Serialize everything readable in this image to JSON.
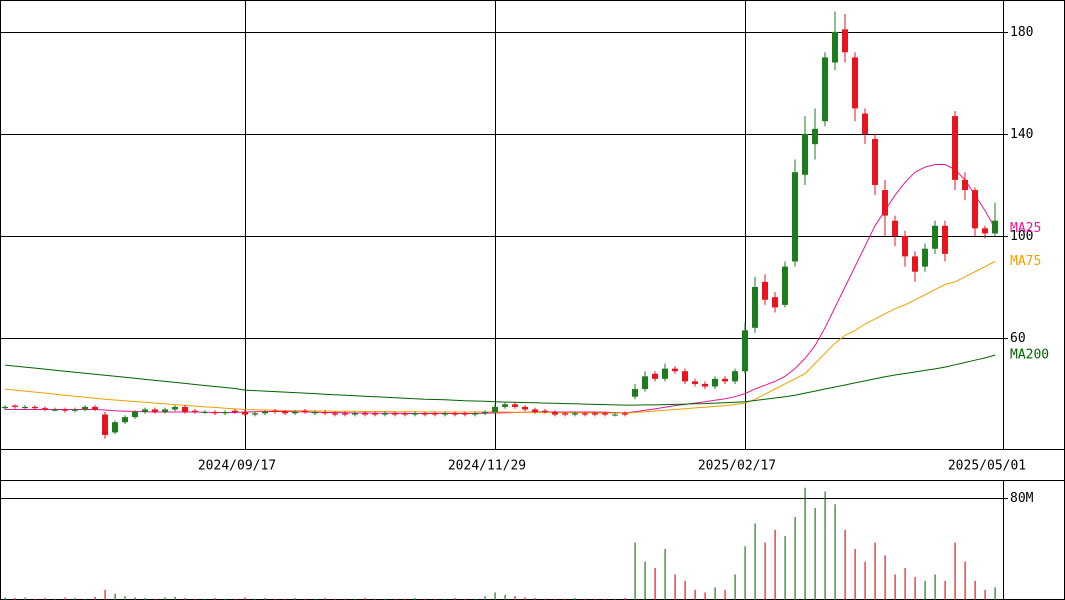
{
  "chart_data": [
    {
      "type": "candlestick",
      "up_color": "#1e7b1e",
      "down_color": "#e8141e",
      "categories": [
        null,
        null,
        null,
        null,
        null,
        null,
        null,
        null,
        null,
        null,
        null,
        null,
        null,
        null,
        null,
        null,
        null,
        null,
        null,
        null,
        null,
        null,
        null,
        null,
        "2024/09/17",
        null,
        null,
        null,
        null,
        null,
        null,
        null,
        null,
        null,
        null,
        null,
        null,
        null,
        null,
        null,
        null,
        null,
        null,
        null,
        null,
        null,
        null,
        null,
        null,
        "2024/11/29",
        null,
        null,
        null,
        null,
        null,
        null,
        null,
        null,
        null,
        null,
        null,
        null,
        null,
        null,
        null,
        null,
        null,
        null,
        null,
        null,
        null,
        null,
        null,
        null,
        "2025/02/17",
        null,
        null,
        null,
        null,
        null,
        null,
        null,
        null,
        null,
        null,
        null,
        null,
        null,
        null,
        null,
        null,
        null,
        null,
        null,
        null,
        null,
        null,
        null,
        null,
        "2025/05/01"
      ],
      "open": [
        32.5,
        33.5,
        32.5,
        33,
        32.5,
        31.5,
        32,
        31.5,
        32,
        33,
        30,
        23,
        27,
        29,
        31,
        32,
        31,
        32,
        33,
        31.5,
        31,
        31,
        30.5,
        31.5,
        31,
        30,
        30.5,
        31.5,
        31,
        30.5,
        31.5,
        30.5,
        31,
        30.5,
        30.5,
        30,
        30.5,
        30.5,
        30,
        30.5,
        30.5,
        30,
        30.5,
        30.5,
        30,
        30.5,
        30.5,
        30,
        30.5,
        31,
        33,
        34,
        33,
        32,
        31.5,
        31,
        30.5,
        30,
        30.5,
        30.5,
        30.5,
        30,
        30.5,
        37,
        40,
        46,
        44,
        48,
        47,
        43,
        42,
        41,
        44,
        43,
        47,
        64,
        82,
        76,
        73,
        90,
        124,
        136,
        145,
        168,
        181,
        170,
        148,
        138,
        118,
        106,
        100,
        92,
        88,
        95,
        104,
        147,
        122,
        118,
        103,
        101
      ],
      "high": [
        33.7,
        34,
        33.7,
        33.7,
        33.2,
        32.7,
        32.7,
        32.7,
        33.7,
        33.7,
        31,
        27.7,
        29.7,
        31.7,
        32.7,
        32.7,
        32.7,
        33.7,
        33.7,
        32.2,
        31.7,
        31.7,
        31.7,
        32.2,
        31.7,
        31.2,
        31.7,
        32.2,
        31.7,
        31.7,
        32.2,
        31.7,
        31.7,
        31.2,
        31.2,
        31.2,
        31.2,
        31.2,
        31.2,
        31.2,
        31.2,
        31.2,
        31.2,
        31.2,
        31.2,
        31.2,
        31.2,
        31.2,
        31.7,
        34,
        34.7,
        34.7,
        33.7,
        32.7,
        32.2,
        31.7,
        31.2,
        31.2,
        31.2,
        31.2,
        31.2,
        30.7,
        31.2,
        42,
        47,
        47,
        50,
        49,
        48,
        44,
        43,
        45,
        45,
        48,
        66,
        84,
        85,
        78,
        90,
        130,
        147,
        150,
        172,
        188,
        187,
        172,
        150,
        140,
        122,
        108,
        102,
        94,
        97,
        106,
        106,
        149,
        125,
        119,
        104,
        113
      ],
      "low": [
        31.8,
        32.3,
        32.3,
        31.8,
        31.3,
        31.3,
        30.8,
        30.8,
        31.3,
        31.3,
        20.5,
        22.3,
        26.3,
        28.3,
        30.3,
        30.3,
        30.3,
        31.3,
        30.3,
        30.3,
        30.3,
        29.8,
        29.8,
        30.3,
        29.3,
        29.3,
        29.8,
        30.3,
        29.8,
        29.8,
        30.3,
        29.8,
        29.8,
        29.3,
        29.3,
        29.3,
        29.3,
        29.3,
        29.3,
        29.3,
        29.3,
        29.3,
        29.3,
        29.3,
        29.3,
        29.3,
        29.3,
        29.3,
        29.8,
        30.3,
        32.3,
        32.3,
        31.3,
        30.3,
        30.3,
        29.3,
        29.3,
        29.3,
        29.3,
        29.3,
        29.3,
        29.3,
        29.3,
        36,
        39,
        43,
        43,
        46,
        42,
        41,
        40,
        40,
        42,
        42,
        46,
        62,
        73,
        70,
        72,
        88,
        120,
        130,
        143,
        165,
        168,
        145,
        136,
        116,
        100,
        96,
        88,
        82,
        86,
        93,
        90,
        118,
        114,
        100,
        99,
        100
      ],
      "close": [
        33,
        33,
        33,
        32.5,
        32,
        32,
        31.5,
        32,
        33,
        32,
        22,
        27,
        29,
        31,
        32,
        31,
        32,
        33,
        31,
        31,
        31,
        30.5,
        31,
        31,
        30,
        30.5,
        31,
        31,
        30.5,
        31,
        31,
        31,
        30.5,
        30,
        30,
        30.5,
        30,
        30,
        30.5,
        30,
        30,
        30.5,
        30,
        30,
        30.5,
        30,
        30,
        30.5,
        31,
        33,
        34,
        33,
        32,
        31,
        31,
        30,
        30,
        30.5,
        30,
        30,
        30,
        30,
        30,
        40,
        45,
        44,
        48,
        47,
        43,
        42,
        41,
        44,
        43,
        47,
        63,
        80,
        75,
        72,
        88,
        125,
        140,
        142,
        170,
        180,
        172,
        150,
        140,
        120,
        108,
        100,
        92,
        86,
        95,
        104,
        93,
        122,
        118,
        103,
        101,
        106
      ],
      "series": [
        {
          "name": "MA25",
          "color": "#e0199a",
          "values": [
            32,
            32,
            32,
            32,
            32,
            32,
            32,
            32,
            32,
            32,
            31.8,
            31.5,
            31.3,
            31.2,
            31.1,
            31,
            31,
            31,
            31,
            31,
            30.9,
            30.8,
            30.8,
            30.8,
            31,
            31.1,
            31.2,
            31.2,
            31.2,
            31.1,
            31,
            30.9,
            30.8,
            30.8,
            30.7,
            30.6,
            30.6,
            30.5,
            30.5,
            30.5,
            30.4,
            30.4,
            30.4,
            30.4,
            30.4,
            30.4,
            30.4,
            30.4,
            30.5,
            30.6,
            30.7,
            30.8,
            30.9,
            31,
            31,
            31,
            31,
            31,
            31,
            31,
            30.9,
            30.8,
            30.7,
            31.1,
            31.7,
            32.2,
            32.9,
            33.5,
            34,
            34.5,
            35,
            35.6,
            36.2,
            37,
            38.2,
            40,
            41.5,
            43,
            45,
            48,
            52,
            57,
            64,
            72,
            80,
            88,
            96,
            104,
            110,
            116,
            121,
            125,
            127,
            128,
            128,
            126,
            122,
            116,
            110,
            103
          ]
        },
        {
          "name": "MA75",
          "color": "#f0a000",
          "values": [
            40,
            39.6,
            39.2,
            38.8,
            38.4,
            38,
            37.6,
            37.2,
            36.8,
            36.4,
            36,
            35.7,
            35.4,
            35.1,
            34.8,
            34.5,
            34.2,
            33.9,
            33.6,
            33.3,
            33,
            32.8,
            32.5,
            32.2,
            32,
            31.9,
            31.8,
            31.7,
            31.6,
            31.5,
            31.5,
            31.4,
            31.4,
            31.3,
            31.3,
            31.3,
            31.2,
            31.2,
            31.2,
            31.1,
            31.1,
            31.1,
            31,
            31,
            31,
            31,
            31,
            31,
            31,
            31,
            31,
            30.9,
            30.9,
            30.8,
            30.8,
            30.8,
            30.7,
            30.7,
            30.7,
            30.6,
            30.6,
            30.6,
            30.6,
            30.8,
            31.1,
            31.4,
            31.7,
            32,
            32.3,
            32.6,
            32.9,
            33.2,
            33.5,
            34,
            34.5,
            36,
            38,
            40,
            42,
            44,
            46,
            50,
            54,
            58,
            61,
            63,
            65.5,
            67.5,
            69.5,
            71.5,
            73,
            75,
            77,
            79,
            81,
            82,
            84,
            86,
            88,
            90
          ]
        },
        {
          "name": "MA200",
          "color": "#006400",
          "values": [
            49.4,
            49,
            48.6,
            48.2,
            47.8,
            47.4,
            47,
            46.6,
            46.2,
            45.8,
            45.4,
            45,
            44.6,
            44.2,
            43.8,
            43.4,
            43,
            42.6,
            42.2,
            41.8,
            41.4,
            41,
            40.6,
            40.2,
            39.6,
            39.4,
            39.2,
            39,
            38.8,
            38.6,
            38.4,
            38.2,
            38,
            37.8,
            37.6,
            37.4,
            37.2,
            37,
            36.8,
            36.6,
            36.4,
            36.2,
            36,
            35.9,
            35.8,
            35.6,
            35.4,
            35.3,
            35.2,
            35,
            34.9,
            34.8,
            34.7,
            34.6,
            34.5,
            34.4,
            34.3,
            34.2,
            34.1,
            34,
            33.9,
            33.8,
            33.7,
            33.7,
            33.8,
            33.8,
            33.9,
            34,
            34.1,
            34.2,
            34.3,
            34.5,
            34.6,
            34.8,
            35,
            35.5,
            36,
            36.5,
            37,
            37.6,
            38.4,
            39.2,
            40,
            40.8,
            41.6,
            42.4,
            43.2,
            44,
            44.8,
            45.5,
            46.1,
            46.7,
            47.3,
            47.9,
            48.6,
            49.5,
            50.4,
            51.3,
            52.2,
            53.3
          ]
        }
      ],
      "ylim": [
        16.5,
        192.5
      ],
      "yticks": [
        60,
        100,
        140,
        180
      ],
      "grid": true
    },
    {
      "type": "bar",
      "values": [
        2,
        1.5,
        2,
        1,
        1.5,
        1,
        2,
        1.5,
        1,
        2.5,
        8,
        5,
        3,
        2,
        1.5,
        1,
        2,
        2.5,
        1.5,
        1,
        1,
        1.5,
        1,
        1,
        2,
        1,
        1.5,
        1,
        1,
        1.5,
        1,
        1,
        1.5,
        1,
        1,
        1,
        1.5,
        1,
        1,
        1,
        1,
        1.5,
        1,
        1,
        1,
        1.5,
        1,
        1,
        3,
        6,
        4,
        3,
        2,
        1.5,
        1,
        1,
        1,
        1.5,
        1,
        1,
        1,
        1,
        1.5,
        45,
        30,
        25,
        40,
        20,
        15,
        8,
        6,
        10,
        8,
        20,
        42,
        60,
        45,
        55,
        50,
        65,
        88,
        72,
        85,
        75,
        55,
        40,
        30,
        45,
        35,
        20,
        25,
        18,
        15,
        20,
        15,
        45,
        30,
        15,
        8,
        10
      ],
      "ylim": [
        0,
        94
      ],
      "yticks": [
        {
          "value": 80,
          "label": "80M"
        }
      ],
      "grid": true
    }
  ]
}
